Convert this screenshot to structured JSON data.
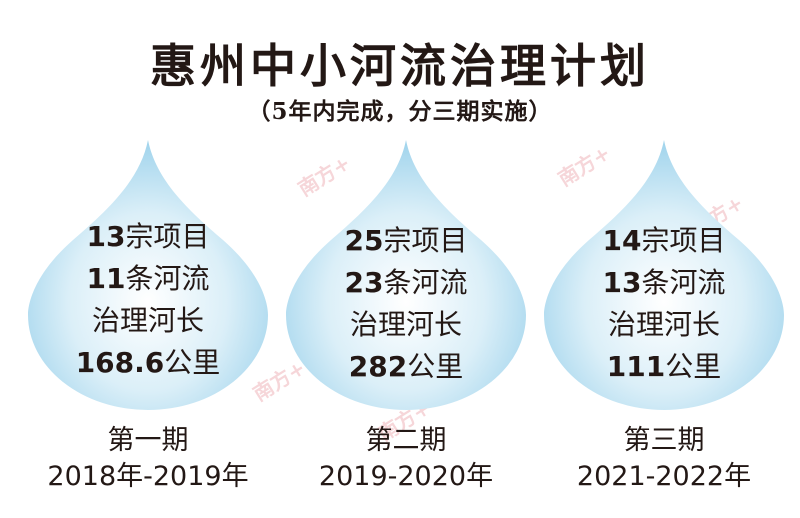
{
  "title": "惠州中小河流治理计划",
  "subtitle": "（5年内完成，分三期实施）",
  "phases": [
    {
      "stats": [
        {
          "num": "13",
          "label": "宗项目"
        },
        {
          "num": "11",
          "label": "条河流"
        },
        {
          "num": "",
          "label": "治理河长"
        },
        {
          "num": "168.6",
          "label": "公里"
        }
      ],
      "name": "第一期",
      "period": "2018年-2019年"
    },
    {
      "stats": [
        {
          "num": "25",
          "label": "宗项目"
        },
        {
          "num": "23",
          "label": "条河流"
        },
        {
          "num": "",
          "label": "治理河长"
        },
        {
          "num": "282",
          "label": "公里"
        }
      ],
      "name": "第二期",
      "period": "2019-2020年"
    },
    {
      "stats": [
        {
          "num": "14",
          "label": "宗项目"
        },
        {
          "num": "13",
          "label": "条河流"
        },
        {
          "num": "",
          "label": "治理河长"
        },
        {
          "num": "111",
          "label": "公里"
        }
      ],
      "name": "第三期",
      "period": "2021-2022年"
    }
  ],
  "watermark": "南方+",
  "colors": {
    "drop_center": "#ffffff",
    "drop_edge": "#9fd3ec",
    "text": "#231815",
    "watermark": "#e17882"
  }
}
